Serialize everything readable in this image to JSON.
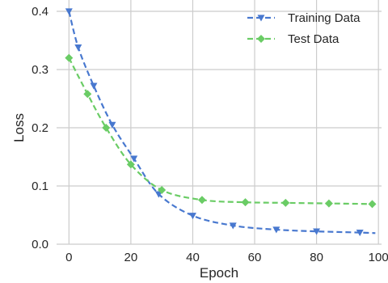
{
  "chart_data": {
    "type": "line",
    "title": "",
    "xlabel": "Epoch",
    "ylabel": "Loss",
    "xlim": [
      -4,
      101
    ],
    "ylim": [
      0,
      0.4
    ],
    "xticks": [
      0,
      20,
      40,
      60,
      80,
      100
    ],
    "yticks": [
      0.0,
      0.1,
      0.2,
      0.3,
      0.4
    ],
    "xtick_labels": [
      "0",
      "20",
      "40",
      "60",
      "80",
      "100"
    ],
    "ytick_labels": [
      "0.0",
      "0.1",
      "0.2",
      "0.3",
      "0.4"
    ],
    "grid": true,
    "legend_position": "top-right",
    "series": [
      {
        "name": "Training Data",
        "color": "#4878cf",
        "marker": "triangle-down",
        "line_style": "dashed",
        "x": [
          0,
          3,
          8,
          14,
          21,
          29,
          40,
          53,
          67,
          80,
          94,
          99
        ],
        "y": [
          0.4,
          0.338,
          0.272,
          0.205,
          0.147,
          0.086,
          0.049,
          0.032,
          0.025,
          0.022,
          0.02,
          0.019
        ],
        "marker_x": [
          0,
          3,
          8,
          14,
          21,
          29,
          40,
          53,
          67,
          80,
          94
        ],
        "marker_y": [
          0.4,
          0.338,
          0.272,
          0.205,
          0.147,
          0.086,
          0.049,
          0.032,
          0.025,
          0.022,
          0.02
        ]
      },
      {
        "name": "Test Data",
        "color": "#6acc65",
        "marker": "diamond",
        "line_style": "dashed",
        "x": [
          0,
          6,
          12,
          20,
          30,
          43,
          57,
          70,
          84,
          98
        ],
        "y": [
          0.32,
          0.258,
          0.2,
          0.137,
          0.093,
          0.076,
          0.072,
          0.071,
          0.07,
          0.069
        ],
        "marker_x": [
          0,
          6,
          12,
          20,
          30,
          43,
          57,
          70,
          84,
          98
        ],
        "marker_y": [
          0.32,
          0.258,
          0.2,
          0.137,
          0.093,
          0.076,
          0.072,
          0.071,
          0.07,
          0.069
        ]
      }
    ]
  }
}
